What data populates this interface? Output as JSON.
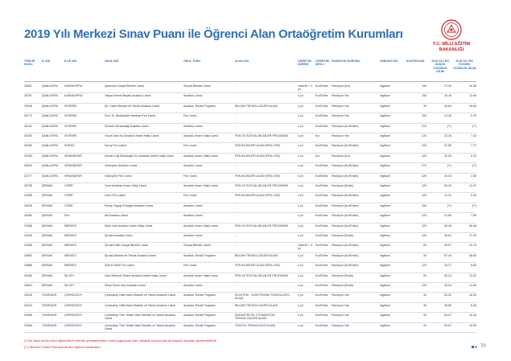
{
  "header": {
    "title": "2019 Yılı Merkezi Sınav Puanı ile Öğrenci Alan Ortaöğretim Kurumları",
    "logo_line1": "T.C. MİLLİ EĞİTİM",
    "logo_line2": "BAKANLIĞI"
  },
  "table": {
    "headers": [
      "TERCİH KODU",
      "İL ADI",
      "İLÇE ADI",
      "OKUL ADI",
      "OKUL TÜRÜ",
      "ALAN ADI",
      "ÖĞRETİM SÜRESİ",
      "ÖĞRETİM ŞEKLİ",
      "PANSİYON DURUMU",
      "YABANCI DİL",
      "KONTENJAN",
      "2018 YILI EN DÜŞÜK YÜZDELİK DİLİM",
      "2018 YILI EN YÜKSEK YÜZDELİK DİLİM"
    ],
    "rows": [
      [
        "25481",
        "ŞANLIURFA",
        "KARAKÖPRÜ",
        "Şanlıurfa Sosyal Bilimler Lisesi",
        "Sosyal Bilimler Lisesi",
        "-",
        "Hazırlık + 4 yıl",
        "Kız/Erkek",
        "Pansiyon (Kız)",
        "İngilizce",
        "150",
        "73.00",
        "16.36"
      ],
      [
        "25787",
        "ŞANLIURFA",
        "KARAKÖPRÜ",
        "Yahya Kemal Beyatlı Anadolu Lisesi",
        "Anadolu Lisesi",
        "-",
        "4 yıl",
        "Kız/Erkek",
        "Pansiyon Yok",
        "İngilizce",
        "150",
        "16.18",
        "11.64"
      ],
      [
        "25945",
        "ŞANLIURFA",
        "SİVEREK",
        "Şh. Cabir Mesleki ve Teknik Anadolu Lisesi",
        "Anadolu Teknik Programı",
        "BİLİŞİM TEKNOLOJİLERİ ALANI",
        "4 yıl",
        "Kız/Erkek",
        "Pansiyon Yok",
        "İngilizce",
        "30",
        "43.84",
        "18.84"
      ],
      [
        "25772",
        "ŞANLIURFA",
        "SİVEREK",
        "Prof. Dr. Abdulkadir Karahan Fen Lisesi",
        "Fen Lisesi",
        "-",
        "4 yıl",
        "Kız/Erkek",
        "Pansiyon Yok",
        "İngilizce",
        "150",
        "13.45",
        "0.76"
      ],
      [
        "26142",
        "ŞANLIURFA",
        "SİVEREK",
        "Siverek Karacadağ Anadolu Lisesi",
        "Anadolu Lisesi",
        "-",
        "4 yıl",
        "Kız/Erkek",
        "Pansiyon (Kız/Erkek)",
        "İngilizce",
        "213",
        "(**)",
        "(**)"
      ],
      [
        "26293",
        "ŞANLIURFA",
        "SİVEREK",
        "Yusuf Dam Kız Anadolu İmam Hatip Lisesi",
        "Anadolu İmam Hatip Lisesi",
        "FEN VE SOSYAL BİLİMLER PROGRAMI",
        "4 yıl",
        "Kız",
        "Pansiyon Yok",
        "İngilizce",
        "120",
        "32.34",
        "7.42"
      ],
      [
        "25180",
        "ŞANLIURFA",
        "SURUÇ",
        "Suruç Fen Lisesi",
        "Fen Lisesi",
        "FEN BİLİMLERİ ALANI (FEN LİSE)",
        "4 yıl",
        "Kız/Erkek",
        "Pansiyon (Kız/Erkek)",
        "İngilizce",
        "120",
        "22.85",
        "7.72"
      ],
      [
        "25183",
        "ŞANLIURFA",
        "VİRANŞEHİR",
        "Kemal Cöğ Kürtçüoğlu Kız Anadolu İmam Hatip Lisesi",
        "Anadolu İmam Hatip Lisesi",
        "FEN BİLİMLERİ ALANI (FEN LİSE)",
        "4 yıl",
        "Kız",
        "Pansiyon (Kız)",
        "İngilizce",
        "120",
        "32.05",
        "5.32"
      ],
      [
        "26042",
        "ŞANLIURFA",
        "VİRANŞEHİR",
        "Viranşehir Anadolu Lisesi",
        "Anadolu Lisesi",
        "-",
        "4 yıl",
        "Kız/Erkek",
        "Pansiyon (Kız/Erkek)",
        "İngilizce",
        "270",
        "(**)",
        "(**)"
      ],
      [
        "23777",
        "ŞANLIURFA",
        "VİRANŞEHİR",
        "Viranşehir Fen Lisesi",
        "Fen Lisesi",
        "FEN BİLİMLERİ ALANI (FEN LİSE)",
        "4 yıl",
        "Kız/Erkek",
        "Pansiyon (Kız/Erkek)",
        "İngilizce",
        "120",
        "15.03",
        "2.85"
      ],
      [
        "25795",
        "ŞIRNAK",
        "CİZRE",
        "Cizre Anadolu İmam Hatip Lisesi",
        "Anadolu İmam Hatip Lisesi",
        "FEN VE SOSYAL BİLİMLER PROGRAMI",
        "4 yıl",
        "Kız/Erkek",
        "Pansiyon (Erkek)",
        "İngilizce",
        "120",
        "53.29",
        "11.97"
      ],
      [
        "25386",
        "ŞIRNAK",
        "CİZRE",
        "Cizre Fen Lisesi",
        "Fen Lisesi",
        "FEN BİLİMLERİ ALANI (FEN LİSE)",
        "4 yıl",
        "Kız/Erkek",
        "Pansiyon (Kız/Erkek)",
        "İngilizce",
        "120",
        "11.31",
        "0.34"
      ],
      [
        "26028",
        "ŞIRNAK",
        "CİZRE",
        "Recep Tayyip Erdoğan Anadolu Lisesi",
        "Anadolu Lisesi",
        "-",
        "4 yıl",
        "Kız/Erkek",
        "Pansiyon (Kız/Erkek)",
        "İngilizce",
        "150",
        "(**)",
        "(**)"
      ],
      [
        "26460",
        "ŞIRNAK",
        "İDİL",
        "İdil Anadolu Lisesi",
        "Anadolu Lisesi",
        "-",
        "4 yıl",
        "Kız/Erkek",
        "Pansiyon (Kız/Erkek)",
        "İngilizce",
        "120",
        "21.60",
        "7.59"
      ],
      [
        "24956",
        "ŞIRNAK",
        "MERKEZ",
        "Şehit Nuh Anadolu İmam Hatip Lisesi",
        "Anadolu İmam Hatip Lisesi",
        "FEN VE SOSYAL BİLİMLER PROGRAMI",
        "4 yıl",
        "Kız/Erkek",
        "Pansiyon (Kız/Erkek)",
        "İngilizce",
        "120",
        "60.46",
        "96.48"
      ],
      [
        "24545",
        "ŞIRNAK",
        "MERKEZ",
        "Şırnak Anadolu Lisesi",
        "Anadolu Lisesi",
        "-",
        "4 yıl",
        "Kız/Erkek",
        "Pansiyon (Erkek)",
        "İngilizce",
        "120",
        "36.61",
        "17.20"
      ],
      [
        "24396",
        "ŞIRNAK",
        "MERKEZ",
        "Şırnak Fatih Sosyal Bilimler Lisesi",
        "Sosyal Bilimler Lisesi",
        "-",
        "Hazırlık + 4 yıl",
        "Kız/Erkek",
        "Pansiyon (Kız/Erkek)",
        "İngilizce",
        "60",
        "26.97",
        "10.70"
      ],
      [
        "25863",
        "ŞIRNAK",
        "MERKEZ",
        "Şırnak Mesleki ve Teknik Anadolu Lisesi",
        "Anadolu Teknik Programı",
        "BİLİŞİM TEKNOLOJİLERİ ALANI",
        "4 yıl",
        "Kız/Erkek",
        "Pansiyon (Kız/Erkek)",
        "İngilizce",
        "30",
        "57.44",
        "38.60"
      ],
      [
        "25868",
        "ŞIRNAK",
        "MERKEZ",
        "Şöhret Gıfta Fen Lisesi",
        "Fen Lisesi",
        "FEN BİLİMLERİ ALANI (FEN LİSE)",
        "4 yıl",
        "Kız/Erkek",
        "Pansiyon (Kız/Erkek)",
        "İngilizce",
        "120",
        "15.27",
        "6.63"
      ],
      [
        "26280",
        "ŞIRNAK",
        "SİLOPİ",
        "Hacı Mehmet Öktem Anadolu İmam Hatip Lisesi",
        "Anadolu İmam Hatip Lisesi",
        "FEN VE SOSYAL BİLİMLER PROGRAMI",
        "4 yıl",
        "Kız/Erkek",
        "Pansiyon (Erkek)",
        "İngilizce",
        "90",
        "50.24",
        "13.32"
      ],
      [
        "25823",
        "ŞIRNAK",
        "SİLOPİ",
        "Silopi Sezer İslin Anadolu Lisesi",
        "Anadolu Lisesi",
        "-",
        "4 yıl",
        "Kız/Erkek",
        "Pansiyon (Erkek)",
        "İngilizce",
        "120",
        "33.54",
        "11.80"
      ],
      [
        "25435",
        "TEKİRDAĞ",
        "ÇERKEZKÖY",
        "Çerkezköy Halit Narin Mesleki ve Teknik Anadolu Lisesi",
        "Anadolu Teknik Programı",
        "ELEKTRİK - ELEKTRONİK TEKNOLOJİSİ ALANI",
        "4 yıl",
        "Kız/Erkek",
        "Pansiyon Yok",
        "İngilizce",
        "30",
        "53.02",
        "16.09"
      ],
      [
        "25434",
        "TEKİRDAĞ",
        "ÇERKEZKÖY",
        "Çerkezköy Halit Narin Mesleki ve Teknik Anadolu Lisesi",
        "Anadolu Teknik Programı",
        "BİLİŞİM TEKNOLOJİLERİ ALANI",
        "4 yıl",
        "Kız/Erkek",
        "Pansiyon Yok",
        "İngilizce",
        "30",
        "36.65",
        "8.48"
      ],
      [
        "25455",
        "TEKİRDAĞ",
        "ÇERKEZKÖY",
        "Çerkezköy Türk Tekstil Vakfı Mesleki ve Teknik Anadolu Lisesi",
        "Anadolu Teknik Programı",
        "ENDÜSTRİYEL OTOMASYON TEKNOLOJİLERİ ALANI",
        "4 yıl",
        "Kız/Erkek",
        "Pansiyon Yok",
        "İngilizce",
        "30",
        "54.97",
        "16.18"
      ],
      [
        "25454",
        "TEKİRDAĞ",
        "ÇERKEZKÖY",
        "Çerkezköy Türk Tekstil Vakfı Mesleki ve Teknik Anadolu Lisesi",
        "Anadolu Teknik Programı",
        "TEKSTİL TEKNOLOJİSİ ALANI",
        "4 yıl",
        "Kız/Erkek",
        "Pansiyon Yok",
        "İngilizce",
        "30",
        "63.97",
        "18.55"
      ]
    ]
  },
  "footer": {
    "note1": "(*) Bu alanı tercih eden öğrencilerin mentor yerleştirmeden sonra yapılacak olan mülakat sonucunda da başarılı olmaları gerekmektedir.",
    "note2": "(**) Merkezi Sınav Puanıyla ilk kez öğrenci alınacaktır.",
    "page": "70"
  }
}
